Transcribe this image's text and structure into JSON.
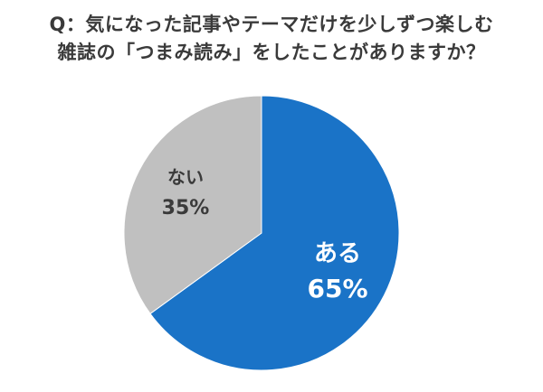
{
  "chart_data": {
    "type": "pie",
    "title_lines": [
      "Q：気になった記事やテーマだけを少しずつ楽しむ",
      "雑誌の「つまみ読み」をしたことがありますか？"
    ],
    "slices": [
      {
        "label": "ある",
        "value": 65,
        "value_label": "65%",
        "color": "#1a73c7",
        "text_color": "#ffffff"
      },
      {
        "label": "ない",
        "value": 35,
        "value_label": "35%",
        "color": "#c0c0c0",
        "text_color": "#3a3a3a"
      }
    ],
    "start": "12 o'clock",
    "direction": "clockwise",
    "legend": "none"
  }
}
